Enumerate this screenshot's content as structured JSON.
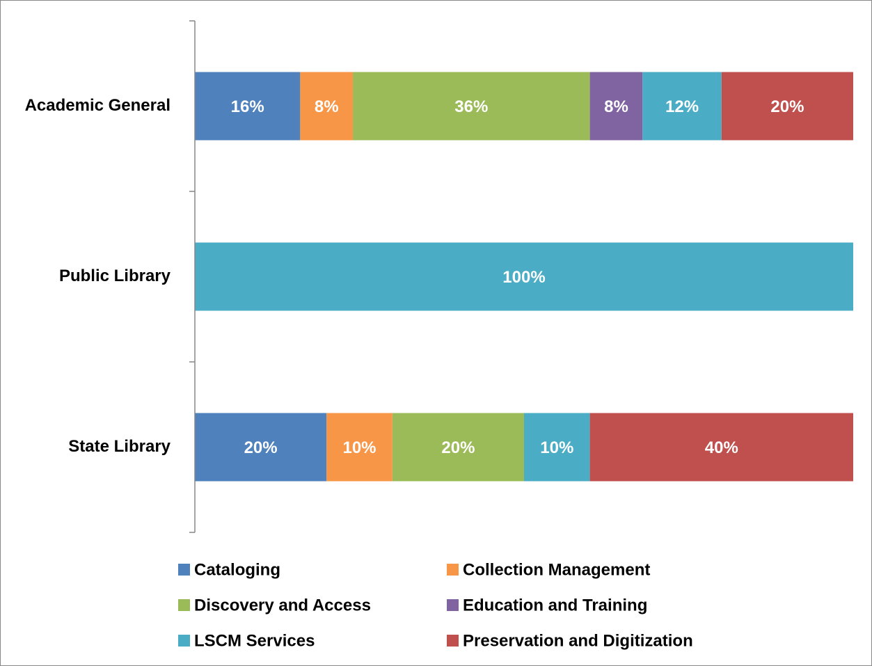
{
  "chart_data": {
    "type": "stacked-bar-horizontal",
    "categories": [
      "Academic General",
      "Public Library",
      "State Library"
    ],
    "xlim": [
      0,
      100
    ],
    "legend": "bottom",
    "series": [
      {
        "name": "Cataloging",
        "color": "#4f81bd",
        "values": [
          16,
          0,
          20
        ],
        "value_labels": [
          "16%",
          null,
          "20%"
        ]
      },
      {
        "name": "Collection Management",
        "color": "#f79646",
        "values": [
          8,
          0,
          10
        ],
        "value_labels": [
          "8%",
          null,
          "10%"
        ]
      },
      {
        "name": "Discovery and Access",
        "color": "#9bbb59",
        "values": [
          36,
          0,
          20
        ],
        "value_labels": [
          "36%",
          null,
          "20%"
        ]
      },
      {
        "name": "Education and Training",
        "color": "#8064a2",
        "values": [
          8,
          0,
          0
        ],
        "value_labels": [
          "8%",
          null,
          null
        ]
      },
      {
        "name": "LSCM Services",
        "color": "#4bacc6",
        "values": [
          12,
          100,
          10
        ],
        "value_labels": [
          "12%",
          "100%",
          "10%"
        ]
      },
      {
        "name": "Preservation and Digitization",
        "color": "#c0504d",
        "values": [
          20,
          0,
          40
        ],
        "value_labels": [
          "20%",
          null,
          "40%"
        ]
      }
    ]
  }
}
